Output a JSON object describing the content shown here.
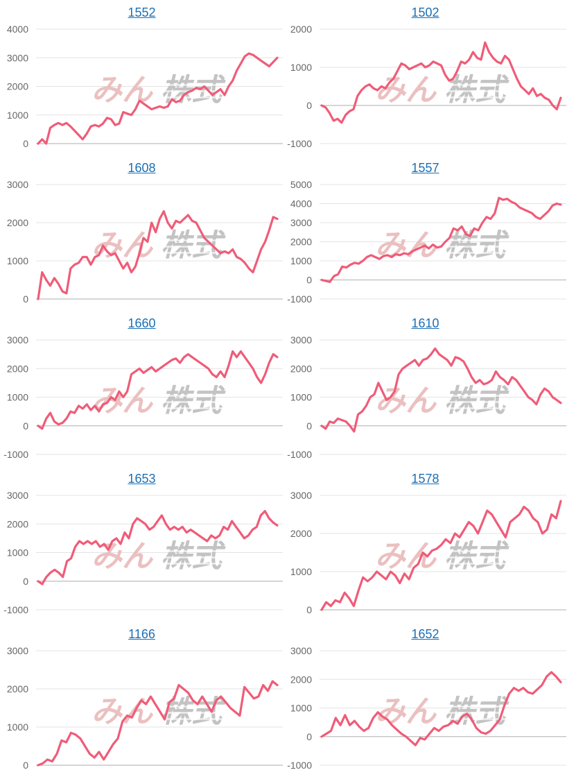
{
  "page": {
    "watermark": {
      "left_text": "みん",
      "right_text": "株式",
      "left_color": "#e8b6b6",
      "right_color": "#b9b9b9"
    }
  },
  "style": {
    "line_color": "#ef5c78",
    "title_color": "#1a6fb5"
  },
  "chart_data": [
    {
      "type": "line",
      "title": "1552",
      "ylim": [
        0,
        4000
      ],
      "yticks": [
        0,
        1000,
        2000,
        3000,
        4000
      ],
      "y": [
        0,
        150,
        0,
        550,
        650,
        720,
        650,
        720,
        600,
        450,
        300,
        150,
        350,
        600,
        650,
        600,
        700,
        900,
        850,
        650,
        700,
        1100,
        1050,
        1000,
        1200,
        1500,
        1400,
        1300,
        1200,
        1250,
        1300,
        1250,
        1300,
        1550,
        1450,
        1500,
        1700,
        1800,
        1850,
        1950,
        1900,
        2000,
        1850,
        1700,
        1800,
        1900,
        1700,
        2000,
        2200,
        2550,
        2800,
        3050,
        3150,
        3100,
        3000,
        2900,
        2800,
        2700,
        2850,
        3000
      ]
    },
    {
      "type": "line",
      "title": "1502",
      "ylim": [
        -1000,
        2000
      ],
      "yticks": [
        -1000,
        0,
        1000,
        2000
      ],
      "y": [
        0,
        -50,
        -200,
        -400,
        -350,
        -450,
        -250,
        -150,
        -100,
        250,
        400,
        500,
        550,
        450,
        400,
        500,
        450,
        600,
        700,
        900,
        1100,
        1050,
        950,
        1000,
        1050,
        1100,
        1000,
        1050,
        1150,
        1100,
        1050,
        800,
        650,
        700,
        900,
        1150,
        1100,
        1200,
        1400,
        1250,
        1200,
        1650,
        1400,
        1250,
        1150,
        1100,
        1300,
        1200,
        950,
        700,
        500,
        400,
        300,
        450,
        250,
        300,
        200,
        150,
        0,
        -100,
        200
      ]
    },
    {
      "type": "line",
      "title": "1608",
      "ylim": [
        0,
        3000
      ],
      "yticks": [
        0,
        1000,
        2000,
        3000
      ],
      "y": [
        0,
        700,
        500,
        350,
        550,
        400,
        200,
        150,
        800,
        900,
        950,
        1100,
        1100,
        900,
        1100,
        1150,
        1400,
        1250,
        1150,
        1200,
        1000,
        800,
        950,
        700,
        850,
        1200,
        1600,
        1500,
        2000,
        1750,
        2100,
        2300,
        2000,
        1850,
        2050,
        2000,
        2100,
        2200,
        2050,
        2000,
        1800,
        1600,
        1500,
        1400,
        1300,
        1200,
        1250,
        1200,
        1300,
        1100,
        1050,
        950,
        800,
        700,
        1000,
        1300,
        1500,
        1800,
        2150,
        2100
      ]
    },
    {
      "type": "line",
      "title": "1557",
      "ylim": [
        -1000,
        5000
      ],
      "yticks": [
        -1000,
        0,
        1000,
        2000,
        3000,
        4000,
        5000
      ],
      "y": [
        0,
        -50,
        -100,
        200,
        300,
        700,
        650,
        800,
        900,
        850,
        1000,
        1200,
        1300,
        1200,
        1100,
        1250,
        1300,
        1200,
        1350,
        1300,
        1400,
        1350,
        1500,
        1600,
        1700,
        1800,
        1650,
        1850,
        1700,
        1750,
        2000,
        2200,
        2700,
        2600,
        2800,
        2400,
        2300,
        2700,
        2600,
        3000,
        3300,
        3200,
        3500,
        4300,
        4200,
        4250,
        4100,
        4000,
        3800,
        3700,
        3600,
        3500,
        3300,
        3200,
        3400,
        3600,
        3900,
        4000,
        3950
      ]
    },
    {
      "type": "line",
      "title": "1660",
      "ylim": [
        -1000,
        3000
      ],
      "yticks": [
        -1000,
        0,
        1000,
        2000,
        3000
      ],
      "y": [
        0,
        -100,
        250,
        450,
        150,
        50,
        100,
        250,
        500,
        450,
        700,
        600,
        750,
        550,
        700,
        500,
        750,
        800,
        1000,
        900,
        1200,
        1000,
        1200,
        1800,
        1900,
        2000,
        1850,
        1950,
        2050,
        1900,
        2000,
        2100,
        2200,
        2300,
        2350,
        2200,
        2400,
        2500,
        2400,
        2300,
        2200,
        2100,
        2000,
        1800,
        1700,
        1900,
        1700,
        2100,
        2600,
        2400,
        2600,
        2400,
        2200,
        2000,
        1700,
        1500,
        1800,
        2200,
        2500,
        2400
      ]
    },
    {
      "type": "line",
      "title": "1610",
      "ylim": [
        -1000,
        3000
      ],
      "yticks": [
        -1000,
        0,
        1000,
        2000,
        3000
      ],
      "y": [
        0,
        -100,
        150,
        100,
        250,
        200,
        150,
        0,
        -200,
        400,
        500,
        700,
        1000,
        1100,
        1500,
        1200,
        900,
        1000,
        1200,
        1800,
        2000,
        2100,
        2200,
        2300,
        2100,
        2300,
        2350,
        2500,
        2700,
        2500,
        2400,
        2300,
        2100,
        2400,
        2350,
        2250,
        2000,
        1700,
        1500,
        1600,
        1450,
        1500,
        1600,
        1900,
        1700,
        1600,
        1450,
        1700,
        1600,
        1400,
        1200,
        1000,
        900,
        750,
        1100,
        1300,
        1200,
        1000,
        900,
        800
      ]
    },
    {
      "type": "line",
      "title": "1653",
      "ylim": [
        -1000,
        3000
      ],
      "yticks": [
        -1000,
        0,
        1000,
        2000,
        3000
      ],
      "y": [
        0,
        -100,
        150,
        300,
        400,
        300,
        150,
        700,
        800,
        1200,
        1400,
        1300,
        1400,
        1300,
        1400,
        1200,
        1300,
        1100,
        1400,
        1500,
        1300,
        1700,
        1500,
        2000,
        2200,
        2100,
        2000,
        1800,
        1900,
        2100,
        2300,
        2000,
        1800,
        1900,
        1800,
        1900,
        1700,
        1800,
        1700,
        1600,
        1500,
        1400,
        1600,
        1500,
        1600,
        1900,
        1800,
        2100,
        1900,
        1700,
        1500,
        1600,
        1800,
        1900,
        2300,
        2450,
        2200,
        2050,
        1950
      ]
    },
    {
      "type": "line",
      "title": "1578",
      "ylim": [
        0,
        3000
      ],
      "yticks": [
        0,
        1000,
        2000,
        3000
      ],
      "y": [
        0,
        200,
        100,
        250,
        200,
        450,
        300,
        100,
        500,
        850,
        750,
        850,
        1000,
        900,
        800,
        1000,
        900,
        700,
        950,
        800,
        1100,
        1200,
        1500,
        1400,
        1550,
        1600,
        1700,
        1850,
        1750,
        2000,
        1900,
        2100,
        2300,
        2200,
        2000,
        2300,
        2600,
        2500,
        2300,
        2100,
        1900,
        2300,
        2400,
        2500,
        2700,
        2600,
        2400,
        2300,
        2000,
        2100,
        2500,
        2400,
        2850
      ]
    },
    {
      "type": "line",
      "title": "1166",
      "ylim": [
        0,
        3000
      ],
      "yticks": [
        0,
        1000,
        2000,
        3000
      ],
      "y": [
        0,
        50,
        150,
        100,
        300,
        650,
        600,
        850,
        800,
        700,
        500,
        300,
        200,
        350,
        150,
        350,
        550,
        700,
        1150,
        1300,
        1250,
        1500,
        1700,
        1600,
        1800,
        1600,
        1400,
        1200,
        1650,
        1750,
        2100,
        2000,
        1900,
        1700,
        1600,
        1800,
        1600,
        1400,
        1700,
        1800,
        1650,
        1500,
        1400,
        1300,
        2050,
        1900,
        1750,
        1800,
        2100,
        1950,
        2200,
        2100
      ]
    },
    {
      "type": "line",
      "title": "1652",
      "ylim": [
        -1000,
        3000
      ],
      "yticks": [
        -1000,
        0,
        1000,
        2000,
        3000
      ],
      "y": [
        0,
        100,
        200,
        650,
        400,
        750,
        400,
        550,
        350,
        200,
        300,
        650,
        850,
        700,
        600,
        400,
        250,
        100,
        0,
        -150,
        -300,
        -50,
        -100,
        100,
        300,
        200,
        350,
        400,
        550,
        450,
        700,
        800,
        600,
        300,
        150,
        100,
        200,
        400,
        600,
        1100,
        1500,
        1700,
        1600,
        1700,
        1550,
        1500,
        1650,
        1800,
        2100,
        2250,
        2100,
        1900
      ]
    }
  ]
}
